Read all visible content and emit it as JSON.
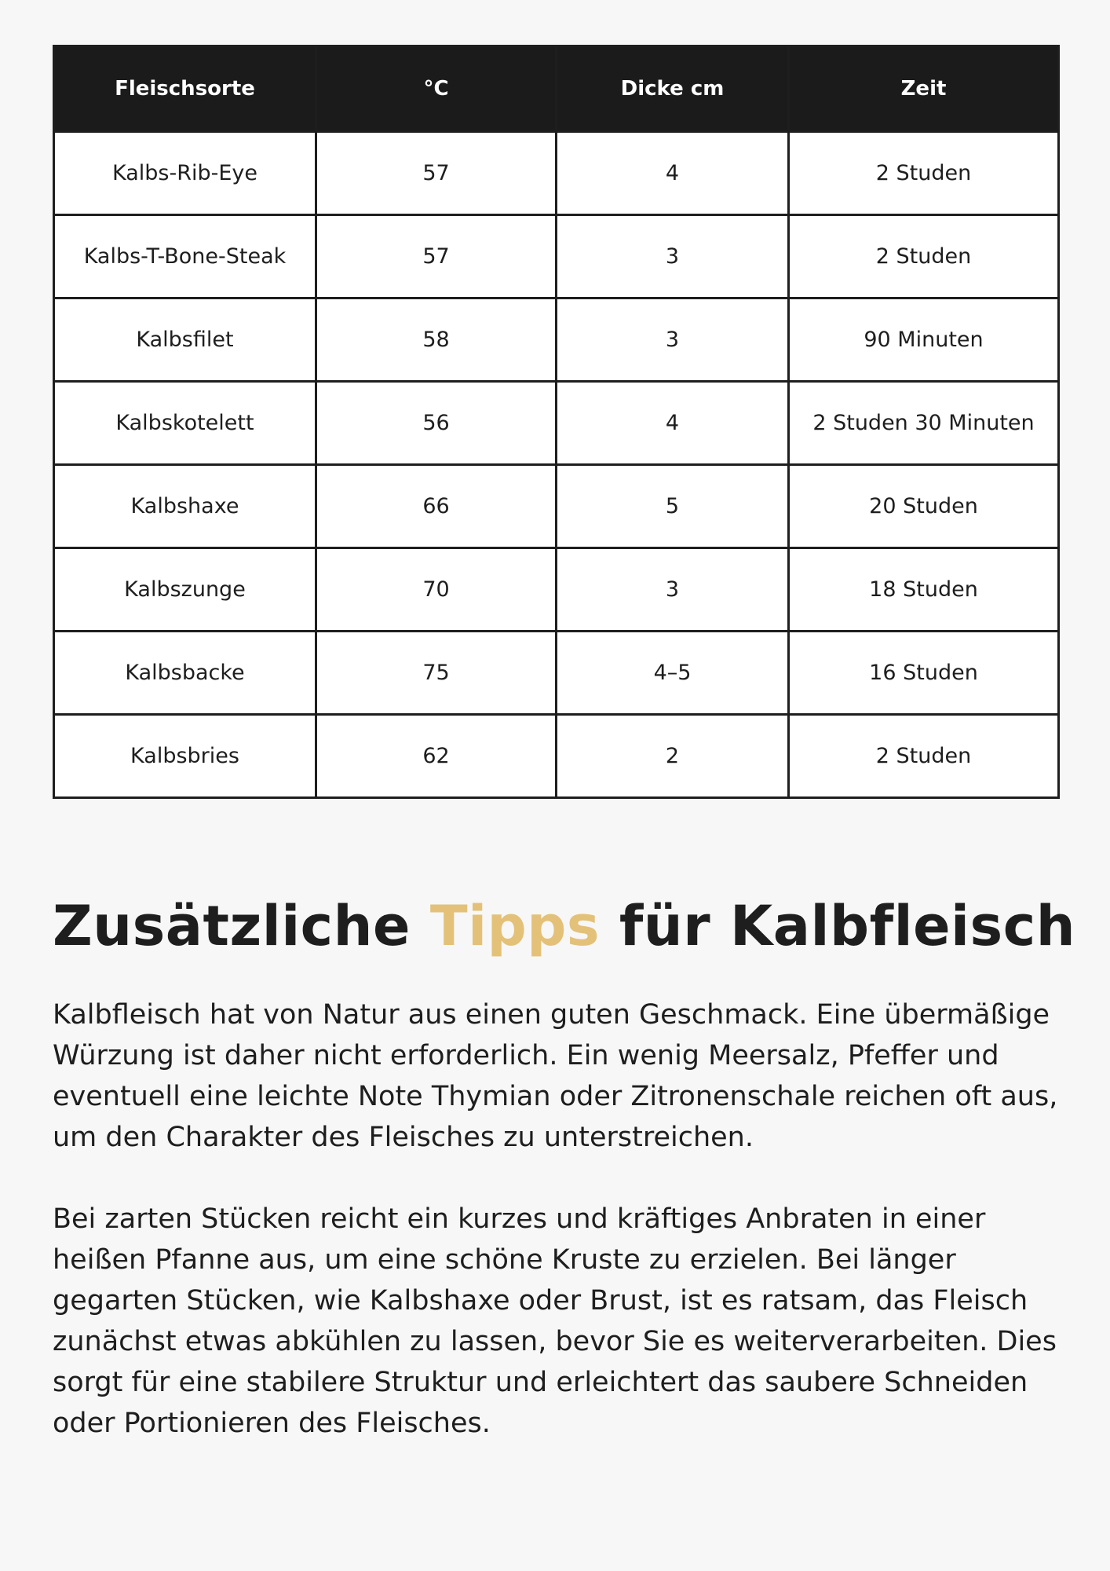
{
  "table": {
    "headers": [
      "Fleischsorte",
      "°C",
      "Dicke cm",
      "Zeit"
    ],
    "rows": [
      [
        "Kalbs-Rib-Eye",
        "57",
        "4",
        "2 Studen"
      ],
      [
        "Kalbs-T-Bone-Steak",
        "57",
        "3",
        "2 Studen"
      ],
      [
        "Kalbsfilet",
        "58",
        "3",
        "90 Minuten"
      ],
      [
        "Kalbskotelett",
        "56",
        "4",
        "2 Studen 30 Minuten"
      ],
      [
        "Kalbshaxe",
        "66",
        "5",
        "20 Studen"
      ],
      [
        "Kalbszunge",
        "70",
        "3",
        "18 Studen"
      ],
      [
        "Kalbsbacke",
        "75",
        "4–5",
        "16 Studen"
      ],
      [
        "Kalbsbries",
        "62",
        "2",
        "2 Studen"
      ]
    ]
  },
  "heading": {
    "part1": "Zusätzliche ",
    "accent": "Tipps",
    "part2": " für Kalbfleisch",
    "accent_color": "#e3c178"
  },
  "paragraphs": [
    "Kalbfleisch hat von Natur aus einen guten Geschmack. Eine übermäßige Würzung ist daher nicht erforderlich. Ein wenig Meersalz, Pfeffer und eventuell eine leichte Note Thymian oder Zitronenschale reichen oft aus, um den Charakter des Fleisches zu unterstreichen.",
    "Bei zarten Stücken reicht ein kurzes und kräftiges Anbraten in einer heißen Pfanne aus, um eine schöne Kruste zu erzielen. Bei länger gegarten Stücken, wie Kalbshaxe oder Brust, ist es ratsam, das Fleisch zunächst etwas abkühlen zu lassen, bevor Sie es weiterverarbeiten. Dies sorgt für eine stabilere Struktur und erleichtert das saubere Schneiden oder Portionieren des Fleisches."
  ]
}
